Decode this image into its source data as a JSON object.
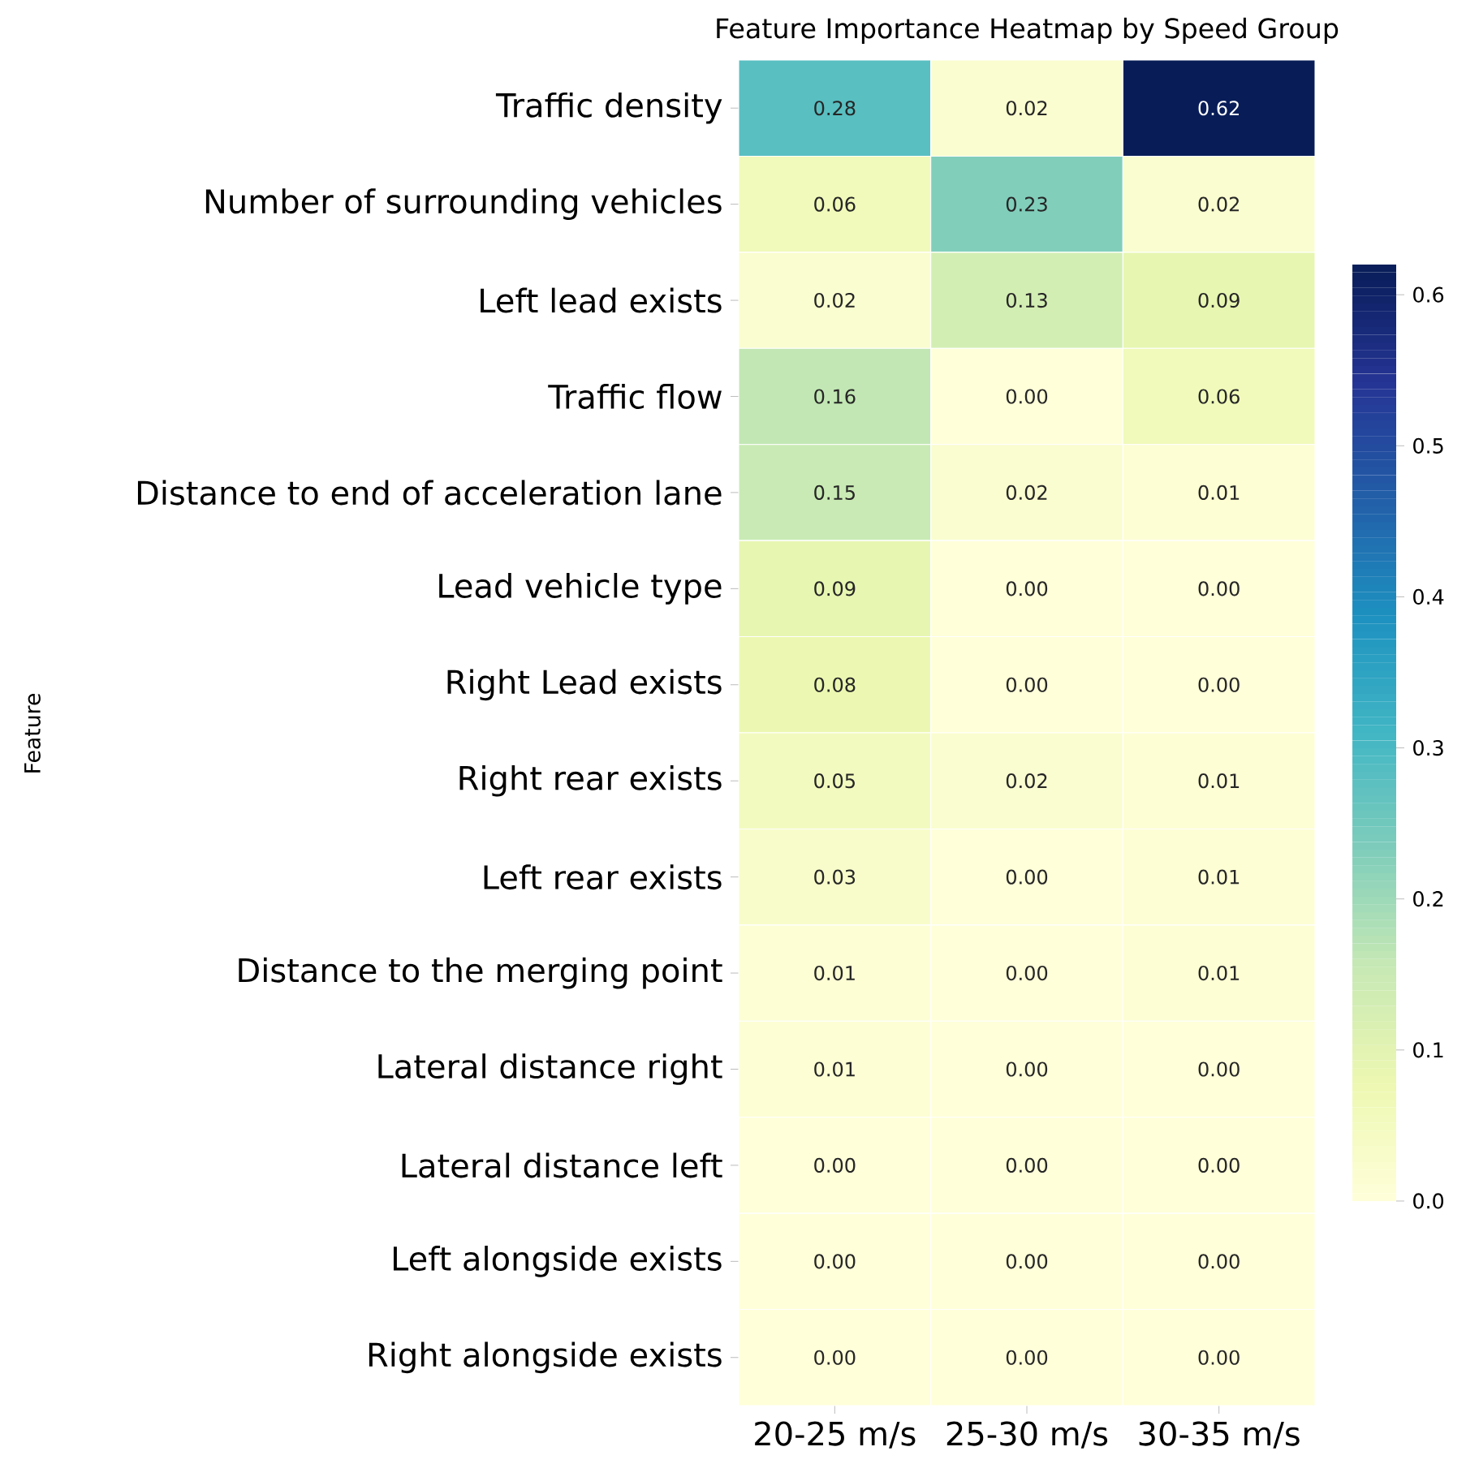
{
  "chart_data": {
    "type": "heatmap",
    "title": "Feature Importance Heatmap by Speed Group",
    "ylabel": "Feature",
    "categories": [
      "20-25 m/s",
      "25-30 m/s",
      "30-35 m/s"
    ],
    "y_categories": [
      "Traffic density",
      "Number of surrounding vehicles",
      "Left lead exists",
      "Traffic flow",
      "Distance to end of acceleration lane",
      "Lead vehicle type",
      "Right Lead exists",
      "Right rear exists",
      "Left rear exists",
      "Distance to the merging point",
      "Lateral distance right",
      "Lateral distance left",
      "Left alongside exists",
      "Right alongside exists"
    ],
    "cells": [
      [
        0.28,
        0.02,
        0.62
      ],
      [
        0.06,
        0.23,
        0.02
      ],
      [
        0.02,
        0.13,
        0.09
      ],
      [
        0.16,
        0.0,
        0.06
      ],
      [
        0.15,
        0.02,
        0.01
      ],
      [
        0.09,
        0.0,
        0.0
      ],
      [
        0.08,
        0.0,
        0.0
      ],
      [
        0.05,
        0.02,
        0.01
      ],
      [
        0.03,
        0.0,
        0.01
      ],
      [
        0.01,
        0.0,
        0.01
      ],
      [
        0.01,
        0.0,
        0.0
      ],
      [
        0.0,
        0.0,
        0.0
      ],
      [
        0.0,
        0.0,
        0.0
      ],
      [
        0.0,
        0.0,
        0.0
      ]
    ],
    "cell_labels": [
      [
        "0.28",
        "0.02",
        "0.62"
      ],
      [
        "0.06",
        "0.23",
        "0.02"
      ],
      [
        "0.02",
        "0.13",
        "0.09"
      ],
      [
        "0.16",
        "0.00",
        "0.06"
      ],
      [
        "0.15",
        "0.02",
        "0.01"
      ],
      [
        "0.09",
        "0.00",
        "0.00"
      ],
      [
        "0.08",
        "0.00",
        "0.00"
      ],
      [
        "0.05",
        "0.02",
        "0.01"
      ],
      [
        "0.03",
        "0.00",
        "0.01"
      ],
      [
        "0.01",
        "0.00",
        "0.01"
      ],
      [
        "0.01",
        "0.00",
        "0.00"
      ],
      [
        "0.00",
        "0.00",
        "0.00"
      ],
      [
        "0.00",
        "0.00",
        "0.00"
      ],
      [
        "0.00",
        "0.00",
        "0.00"
      ]
    ],
    "clim": [
      0,
      0.62
    ],
    "cticks": [
      {
        "value": 0,
        "label": "0.0"
      },
      {
        "value": 0.1,
        "label": "0.1"
      },
      {
        "value": 0.2,
        "label": "0.2"
      },
      {
        "value": 0.3,
        "label": "0.3"
      },
      {
        "value": 0.4,
        "label": "0.4"
      },
      {
        "value": 0.5,
        "label": "0.5"
      },
      {
        "value": 0.6,
        "label": "0.6"
      }
    ]
  }
}
